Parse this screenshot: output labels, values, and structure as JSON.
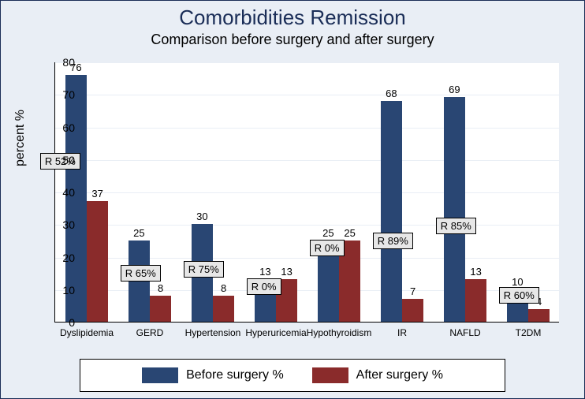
{
  "chart": {
    "type": "bar",
    "title": "Comorbidities Remission",
    "subtitle": "Comparison before surgery and after surgery",
    "ylabel": "percent %",
    "ylim": [
      0,
      80
    ],
    "ytick_step": 10,
    "plot_background": "#ffffff",
    "frame_background": "#e9eef5",
    "grid_color": "#e9eef5",
    "title_color": "#1a2d57",
    "title_fontsize": 26,
    "subtitle_fontsize": 18,
    "axis_label_fontsize": 16,
    "tick_fontsize": 14,
    "bar_label_fontsize": 13,
    "categories": [
      "Dyslipidemia",
      "GERD",
      "Hypertension",
      "Hyperuricemia",
      "Hypothyroidism",
      "IR",
      "NAFLD",
      "T2DM"
    ],
    "series": [
      {
        "name": "Before surgery %",
        "color": "#294673",
        "values": [
          76,
          25,
          30,
          13,
          25,
          68,
          69,
          10
        ]
      },
      {
        "name": "After surgery %",
        "color": "#8a2b2b",
        "values": [
          37,
          8,
          8,
          13,
          25,
          7,
          13,
          4
        ]
      }
    ],
    "remission_labels": [
      "R 52%",
      "R 65%",
      "R 75%",
      "R 0%",
      "R 0%",
      "R 89%",
      "R 85%",
      "R 60%"
    ],
    "legend": {
      "items": [
        {
          "label": "Before surgery %",
          "color": "#294673"
        },
        {
          "label": "After surgery %",
          "color": "#8a2b2b"
        }
      ],
      "border_color": "#000000",
      "background": "#ffffff"
    },
    "r_badge": {
      "background": "#e7e7e7",
      "border": "#000000"
    }
  }
}
